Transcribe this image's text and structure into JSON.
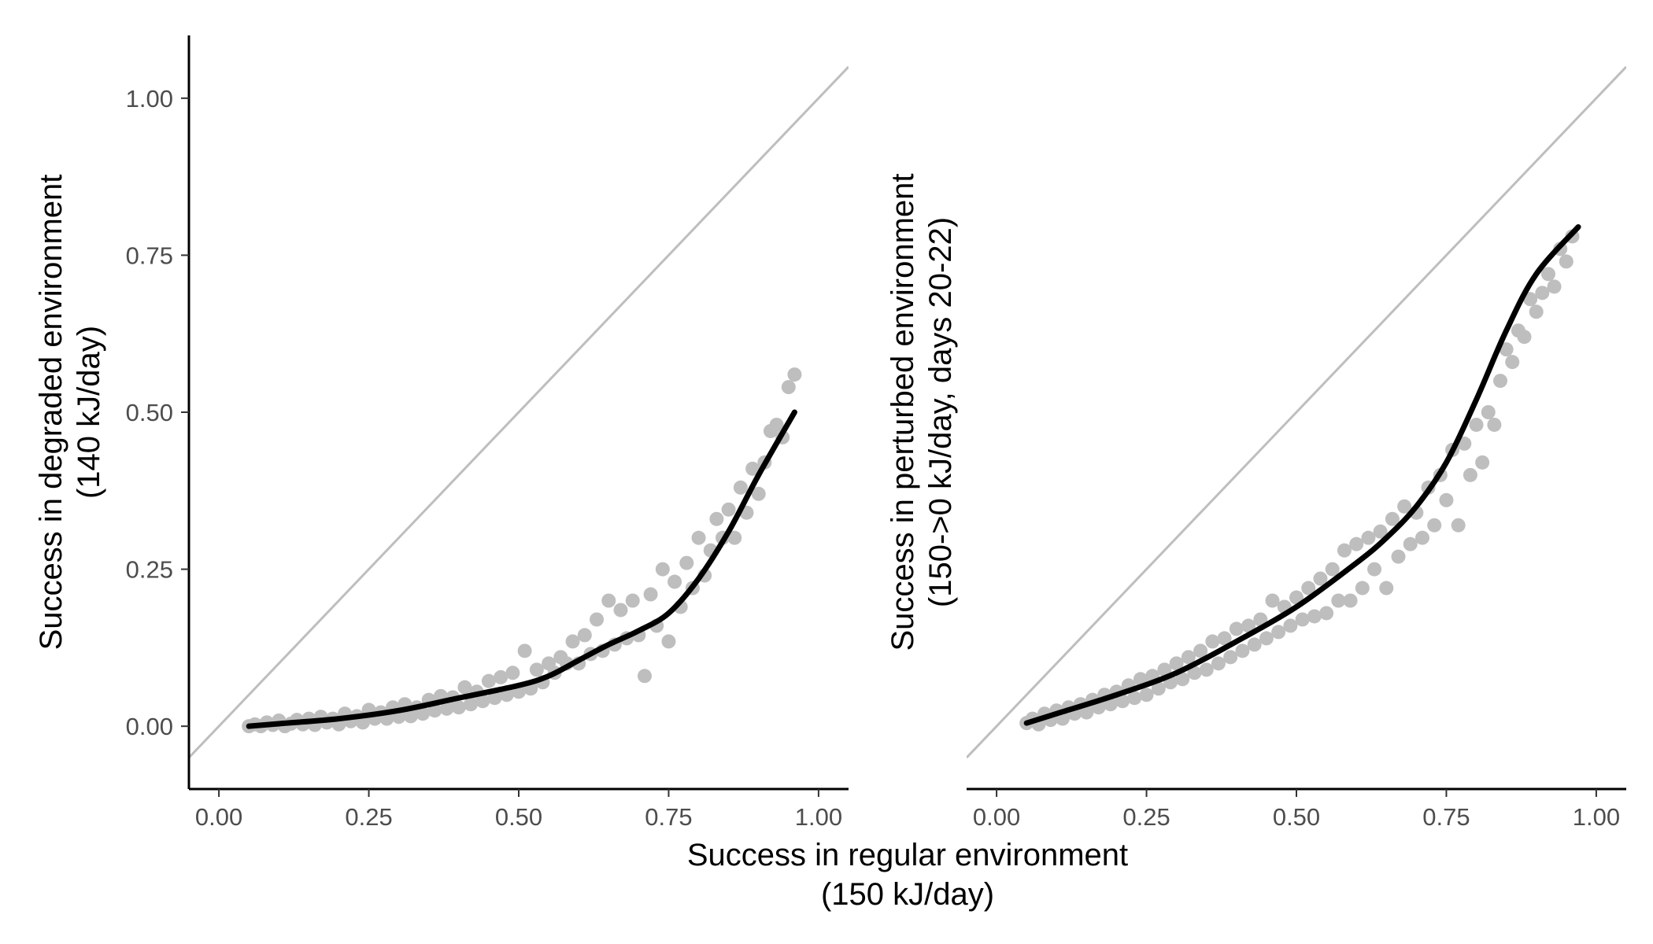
{
  "chart_data": [
    {
      "type": "scatter",
      "title": "",
      "xlabel": [
        "Success in regular environment",
        "(150 kJ/day)"
      ],
      "ylabel": [
        "Success in degraded environment",
        "(140 kJ/day)"
      ],
      "xlim": [
        -0.05,
        1.05
      ],
      "ylim": [
        -0.1,
        1.1
      ],
      "xticks": [
        "0.00",
        "0.25",
        "0.50",
        "0.75",
        "1.00"
      ],
      "yticks": [
        "0.00",
        "0.25",
        "0.50",
        "0.75",
        "1.00"
      ],
      "grid": false,
      "reference_line": {
        "slope": 1,
        "intercept": 0
      },
      "point_color": "#bebebe",
      "smooth_color": "#000000",
      "line_color": "#bebebe",
      "smooth_curve": {
        "x": [
          0.05,
          0.1,
          0.2,
          0.3,
          0.4,
          0.5,
          0.55,
          0.6,
          0.65,
          0.7,
          0.75,
          0.8,
          0.85,
          0.9,
          0.96
        ],
        "y": [
          0.0,
          0.004,
          0.012,
          0.025,
          0.045,
          0.065,
          0.08,
          0.105,
          0.13,
          0.152,
          0.18,
          0.235,
          0.31,
          0.4,
          0.5
        ]
      },
      "points": [
        [
          0.05,
          0.0
        ],
        [
          0.06,
          0.003
        ],
        [
          0.07,
          0.0
        ],
        [
          0.08,
          0.006
        ],
        [
          0.09,
          0.002
        ],
        [
          0.1,
          0.009
        ],
        [
          0.11,
          0.0
        ],
        [
          0.12,
          0.004
        ],
        [
          0.13,
          0.01
        ],
        [
          0.14,
          0.003
        ],
        [
          0.15,
          0.012
        ],
        [
          0.16,
          0.002
        ],
        [
          0.17,
          0.015
        ],
        [
          0.18,
          0.006
        ],
        [
          0.19,
          0.012
        ],
        [
          0.2,
          0.003
        ],
        [
          0.21,
          0.02
        ],
        [
          0.22,
          0.008
        ],
        [
          0.23,
          0.016
        ],
        [
          0.24,
          0.006
        ],
        [
          0.25,
          0.026
        ],
        [
          0.26,
          0.012
        ],
        [
          0.27,
          0.022
        ],
        [
          0.28,
          0.012
        ],
        [
          0.29,
          0.03
        ],
        [
          0.3,
          0.015
        ],
        [
          0.31,
          0.035
        ],
        [
          0.32,
          0.016
        ],
        [
          0.33,
          0.03
        ],
        [
          0.34,
          0.02
        ],
        [
          0.35,
          0.042
        ],
        [
          0.36,
          0.025
        ],
        [
          0.37,
          0.048
        ],
        [
          0.38,
          0.028
        ],
        [
          0.39,
          0.046
        ],
        [
          0.4,
          0.03
        ],
        [
          0.41,
          0.062
        ],
        [
          0.42,
          0.035
        ],
        [
          0.43,
          0.055
        ],
        [
          0.44,
          0.04
        ],
        [
          0.45,
          0.072
        ],
        [
          0.46,
          0.045
        ],
        [
          0.47,
          0.078
        ],
        [
          0.48,
          0.05
        ],
        [
          0.49,
          0.085
        ],
        [
          0.5,
          0.055
        ],
        [
          0.51,
          0.12
        ],
        [
          0.52,
          0.06
        ],
        [
          0.53,
          0.09
        ],
        [
          0.54,
          0.07
        ],
        [
          0.55,
          0.1
        ],
        [
          0.56,
          0.085
        ],
        [
          0.57,
          0.11
        ],
        [
          0.58,
          0.1
        ],
        [
          0.59,
          0.135
        ],
        [
          0.6,
          0.1
        ],
        [
          0.61,
          0.145
        ],
        [
          0.62,
          0.115
        ],
        [
          0.63,
          0.17
        ],
        [
          0.64,
          0.12
        ],
        [
          0.65,
          0.2
        ],
        [
          0.66,
          0.13
        ],
        [
          0.67,
          0.185
        ],
        [
          0.68,
          0.14
        ],
        [
          0.69,
          0.2
        ],
        [
          0.7,
          0.145
        ],
        [
          0.71,
          0.08
        ],
        [
          0.72,
          0.21
        ],
        [
          0.73,
          0.16
        ],
        [
          0.74,
          0.25
        ],
        [
          0.75,
          0.135
        ],
        [
          0.76,
          0.23
        ],
        [
          0.77,
          0.19
        ],
        [
          0.78,
          0.26
        ],
        [
          0.79,
          0.22
        ],
        [
          0.8,
          0.3
        ],
        [
          0.81,
          0.24
        ],
        [
          0.82,
          0.28
        ],
        [
          0.83,
          0.33
        ],
        [
          0.84,
          0.3
        ],
        [
          0.85,
          0.345
        ],
        [
          0.86,
          0.3
        ],
        [
          0.87,
          0.38
        ],
        [
          0.88,
          0.34
        ],
        [
          0.89,
          0.41
        ],
        [
          0.9,
          0.37
        ],
        [
          0.91,
          0.42
        ],
        [
          0.92,
          0.47
        ],
        [
          0.93,
          0.48
        ],
        [
          0.94,
          0.46
        ],
        [
          0.95,
          0.54
        ],
        [
          0.96,
          0.56
        ]
      ]
    },
    {
      "type": "scatter",
      "title": "",
      "xlabel": [
        "Success in regular environment",
        "(150 kJ/day)"
      ],
      "ylabel": [
        "Success in perturbed environment",
        "(150->0 kJ/day, days 20-22)"
      ],
      "xlim": [
        -0.05,
        1.05
      ],
      "ylim": [
        -0.1,
        1.1
      ],
      "xticks": [
        "0.00",
        "0.25",
        "0.50",
        "0.75",
        "1.00"
      ],
      "yticks": [],
      "grid": false,
      "reference_line": {
        "slope": 1,
        "intercept": 0
      },
      "point_color": "#bebebe",
      "smooth_color": "#000000",
      "line_color": "#bebebe",
      "smooth_curve": {
        "x": [
          0.05,
          0.1,
          0.2,
          0.3,
          0.4,
          0.5,
          0.6,
          0.65,
          0.7,
          0.75,
          0.8,
          0.85,
          0.9,
          0.97
        ],
        "y": [
          0.005,
          0.02,
          0.05,
          0.085,
          0.135,
          0.19,
          0.26,
          0.3,
          0.35,
          0.42,
          0.52,
          0.63,
          0.72,
          0.795
        ]
      },
      "points": [
        [
          0.05,
          0.005
        ],
        [
          0.06,
          0.012
        ],
        [
          0.07,
          0.003
        ],
        [
          0.08,
          0.02
        ],
        [
          0.09,
          0.01
        ],
        [
          0.1,
          0.025
        ],
        [
          0.11,
          0.012
        ],
        [
          0.12,
          0.03
        ],
        [
          0.13,
          0.02
        ],
        [
          0.14,
          0.035
        ],
        [
          0.15,
          0.022
        ],
        [
          0.16,
          0.042
        ],
        [
          0.17,
          0.03
        ],
        [
          0.18,
          0.05
        ],
        [
          0.19,
          0.035
        ],
        [
          0.2,
          0.055
        ],
        [
          0.21,
          0.04
        ],
        [
          0.22,
          0.065
        ],
        [
          0.23,
          0.045
        ],
        [
          0.24,
          0.075
        ],
        [
          0.25,
          0.05
        ],
        [
          0.26,
          0.08
        ],
        [
          0.27,
          0.06
        ],
        [
          0.28,
          0.09
        ],
        [
          0.29,
          0.07
        ],
        [
          0.3,
          0.1
        ],
        [
          0.31,
          0.075
        ],
        [
          0.32,
          0.11
        ],
        [
          0.33,
          0.085
        ],
        [
          0.34,
          0.12
        ],
        [
          0.35,
          0.09
        ],
        [
          0.36,
          0.135
        ],
        [
          0.37,
          0.1
        ],
        [
          0.38,
          0.14
        ],
        [
          0.39,
          0.11
        ],
        [
          0.4,
          0.155
        ],
        [
          0.41,
          0.12
        ],
        [
          0.42,
          0.16
        ],
        [
          0.43,
          0.13
        ],
        [
          0.44,
          0.17
        ],
        [
          0.45,
          0.14
        ],
        [
          0.46,
          0.2
        ],
        [
          0.47,
          0.15
        ],
        [
          0.48,
          0.19
        ],
        [
          0.49,
          0.16
        ],
        [
          0.5,
          0.205
        ],
        [
          0.51,
          0.17
        ],
        [
          0.52,
          0.22
        ],
        [
          0.53,
          0.175
        ],
        [
          0.54,
          0.235
        ],
        [
          0.55,
          0.18
        ],
        [
          0.56,
          0.25
        ],
        [
          0.57,
          0.2
        ],
        [
          0.58,
          0.28
        ],
        [
          0.59,
          0.2
        ],
        [
          0.6,
          0.29
        ],
        [
          0.61,
          0.22
        ],
        [
          0.62,
          0.3
        ],
        [
          0.63,
          0.25
        ],
        [
          0.64,
          0.31
        ],
        [
          0.65,
          0.22
        ],
        [
          0.66,
          0.33
        ],
        [
          0.67,
          0.27
        ],
        [
          0.68,
          0.35
        ],
        [
          0.69,
          0.29
        ],
        [
          0.7,
          0.34
        ],
        [
          0.71,
          0.3
        ],
        [
          0.72,
          0.38
        ],
        [
          0.73,
          0.32
        ],
        [
          0.74,
          0.4
        ],
        [
          0.75,
          0.36
        ],
        [
          0.76,
          0.44
        ],
        [
          0.77,
          0.32
        ],
        [
          0.78,
          0.45
        ],
        [
          0.79,
          0.4
        ],
        [
          0.8,
          0.48
        ],
        [
          0.81,
          0.42
        ],
        [
          0.82,
          0.5
        ],
        [
          0.83,
          0.48
        ],
        [
          0.84,
          0.55
        ],
        [
          0.85,
          0.6
        ],
        [
          0.86,
          0.58
        ],
        [
          0.87,
          0.63
        ],
        [
          0.88,
          0.62
        ],
        [
          0.89,
          0.68
        ],
        [
          0.9,
          0.66
        ],
        [
          0.91,
          0.69
        ],
        [
          0.92,
          0.72
        ],
        [
          0.93,
          0.7
        ],
        [
          0.94,
          0.76
        ],
        [
          0.95,
          0.74
        ],
        [
          0.96,
          0.78
        ]
      ]
    }
  ]
}
